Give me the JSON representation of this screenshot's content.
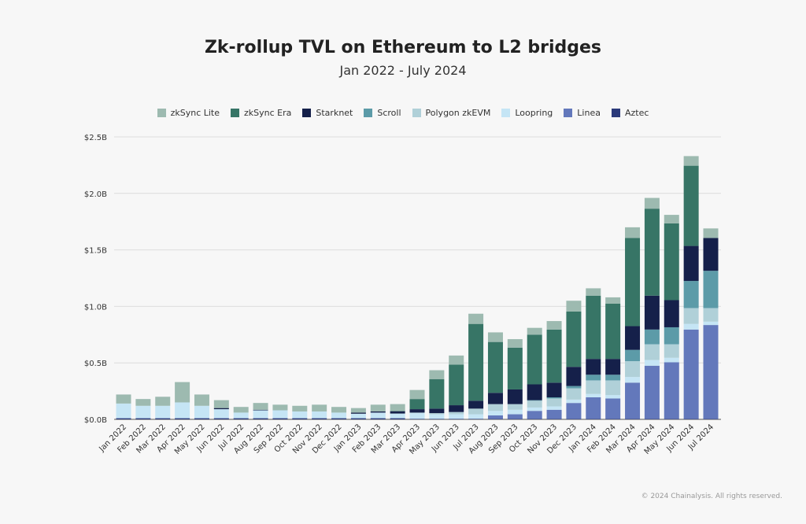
{
  "chart_data": {
    "type": "bar",
    "stacked": true,
    "title": "Zk-rollup TVL on Ethereum to L2 bridges",
    "subtitle": "Jan 2022 - July 2024",
    "xlabel": "",
    "ylabel": "",
    "ylim": [
      0,
      2.5
    ],
    "yticks": [
      "$0.0B",
      "$0.5B",
      "$1.0B",
      "$1.5B",
      "$2.0B",
      "$2.5B"
    ],
    "grid": true,
    "legend_position": "top",
    "footer": "© 2024 Chainalysis. All rights reserved.",
    "categories": [
      "Jan 2022",
      "Feb 2022",
      "Mar 2022",
      "Apr 2022",
      "May 2022",
      "Jun 2022",
      "Jul 2022",
      "Aug 2022",
      "Sep 2022",
      "Oct 2022",
      "Nov 2022",
      "Dec 2022",
      "Jan 2023",
      "Feb 2023",
      "Mar 2023",
      "Apr 2023",
      "May 2023",
      "Jun 2023",
      "Jul 2023",
      "Aug 2023",
      "Sep 2023",
      "Oct 2023",
      "Nov 2023",
      "Dec 2023",
      "Jan 2024",
      "Feb 2024",
      "Mar 2024",
      "Apr 2024",
      "May 2024",
      "Jun 2024",
      "Jul 2024"
    ],
    "series": [
      {
        "name": "Aztec",
        "color": "#2b3a7a",
        "values": [
          0.01,
          0.01,
          0.01,
          0.01,
          0.01,
          0.01,
          0.01,
          0.01,
          0.01,
          0.01,
          0.01,
          0.01,
          0.01,
          0.01,
          0.01,
          0.005,
          0.005,
          0.005,
          0.005,
          0.005,
          0.005,
          0.005,
          0.005,
          0.005,
          0.005,
          0.005,
          0.005,
          0.005,
          0.005,
          0.005,
          0.005
        ]
      },
      {
        "name": "Linea",
        "color": "#6378bb",
        "values": [
          0,
          0,
          0,
          0,
          0,
          0,
          0,
          0,
          0,
          0,
          0,
          0,
          0,
          0,
          0,
          0,
          0,
          0,
          0,
          0.03,
          0.04,
          0.07,
          0.08,
          0.14,
          0.19,
          0.18,
          0.32,
          0.47,
          0.5,
          0.79,
          0.83
        ]
      },
      {
        "name": "Loopring",
        "color": "#c5e5f5",
        "values": [
          0.13,
          0.11,
          0.11,
          0.14,
          0.11,
          0.08,
          0.05,
          0.07,
          0.07,
          0.06,
          0.06,
          0.05,
          0.04,
          0.05,
          0.04,
          0.05,
          0.04,
          0.04,
          0.04,
          0.04,
          0.04,
          0.03,
          0.03,
          0.03,
          0.03,
          0.03,
          0.05,
          0.05,
          0.04,
          0.05,
          0.03
        ]
      },
      {
        "name": "Polygon zkEVM",
        "color": "#b0d0d8",
        "values": [
          0,
          0,
          0,
          0,
          0,
          0,
          0,
          0,
          0,
          0,
          0,
          0,
          0,
          0,
          0.002,
          0.005,
          0.01,
          0.02,
          0.05,
          0.06,
          0.05,
          0.06,
          0.07,
          0.1,
          0.12,
          0.13,
          0.14,
          0.14,
          0.12,
          0.14,
          0.12
        ]
      },
      {
        "name": "Scroll",
        "color": "#5c9ba8",
        "values": [
          0,
          0,
          0,
          0,
          0,
          0,
          0,
          0,
          0,
          0,
          0,
          0,
          0,
          0,
          0,
          0,
          0,
          0,
          0,
          0,
          0,
          0.005,
          0.01,
          0.02,
          0.05,
          0.05,
          0.1,
          0.13,
          0.15,
          0.24,
          0.33
        ]
      },
      {
        "name": "Starknet",
        "color": "#15204a",
        "values": [
          0,
          0,
          0,
          0,
          0,
          0.01,
          0,
          0.005,
          0,
          0,
          0,
          0,
          0.01,
          0.01,
          0.02,
          0.03,
          0.04,
          0.06,
          0.07,
          0.1,
          0.13,
          0.14,
          0.13,
          0.17,
          0.14,
          0.14,
          0.21,
          0.3,
          0.24,
          0.31,
          0.29
        ]
      },
      {
        "name": "zkSync Era",
        "color": "#377566",
        "values": [
          0,
          0,
          0,
          0,
          0,
          0,
          0,
          0,
          0,
          0,
          0,
          0,
          0,
          0,
          0.003,
          0.09,
          0.26,
          0.36,
          0.68,
          0.45,
          0.37,
          0.44,
          0.47,
          0.49,
          0.56,
          0.49,
          0.78,
          0.77,
          0.68,
          0.71,
          0
        ]
      },
      {
        "name": "zkSync Lite",
        "color": "#9dbab0",
        "values": [
          0.08,
          0.06,
          0.08,
          0.18,
          0.1,
          0.07,
          0.05,
          0.06,
          0.05,
          0.05,
          0.06,
          0.05,
          0.04,
          0.06,
          0.06,
          0.08,
          0.08,
          0.08,
          0.09,
          0.085,
          0.075,
          0.06,
          0.075,
          0.095,
          0.065,
          0.055,
          0.095,
          0.095,
          0.075,
          0.085,
          0.085
        ]
      }
    ],
    "legend_order": [
      "zkSync Lite",
      "zkSync Era",
      "Starknet",
      "Scroll",
      "Polygon zkEVM",
      "Loopring",
      "Linea",
      "Aztec"
    ]
  }
}
